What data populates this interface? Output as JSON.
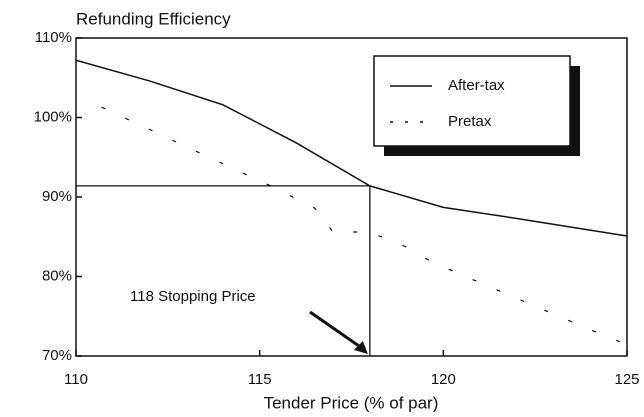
{
  "chart_data": {
    "type": "line",
    "title": "Refunding Efficiency",
    "x_label": "Tender Price (% of par)",
    "xlim": [
      110,
      125
    ],
    "xticks": [
      110,
      115,
      120,
      125
    ],
    "ylim": [
      70,
      110
    ],
    "yticks": [
      {
        "value": 70,
        "label": "70%"
      },
      {
        "value": 80,
        "label": "80%"
      },
      {
        "value": 90,
        "label": "90%"
      },
      {
        "value": 100,
        "label": "100%"
      },
      {
        "value": 110,
        "label": "110%"
      }
    ],
    "legend_position": "upper right",
    "series": [
      {
        "name": "After-tax",
        "color": "#111111",
        "style": "solid",
        "x": [
          110,
          112,
          114,
          116,
          118,
          120,
          122,
          125
        ],
        "values": [
          107.2,
          104.6,
          101.6,
          96.8,
          91.4,
          88.7,
          87.3,
          85.1
        ]
      },
      {
        "name": "Pretax",
        "color": "#111111",
        "style": "dotted",
        "x": [
          110.7,
          114.5,
          115.3,
          116.5,
          117,
          118,
          119,
          119.5,
          120.3,
          124,
          124.8
        ],
        "values": [
          101.3,
          93.1,
          91.4,
          88.6,
          85.6,
          85.6,
          83.7,
          82.3,
          80.6,
          73.3,
          71.8
        ]
      }
    ],
    "annotation": {
      "label": "118 Stopping Price",
      "x": 118,
      "y": 91.4
    }
  }
}
